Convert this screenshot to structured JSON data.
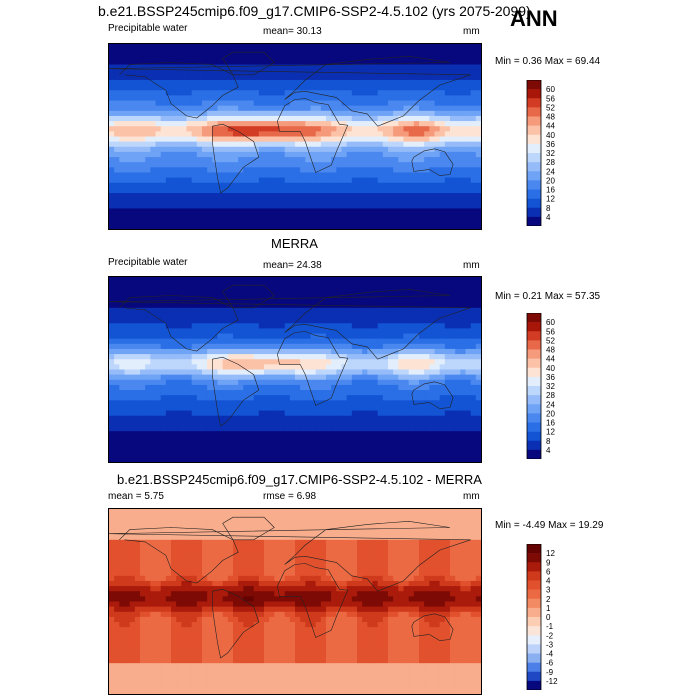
{
  "header": {
    "title": "b.e21.BSSP245cmip6.f09_g17.CMIP6-SSP2-4.5.102 (yrs 2075-2099)",
    "season": "ANN"
  },
  "panels": [
    {
      "title": "",
      "left_label": "Precipitable water",
      "center_label": "mean=  30.13",
      "units": "mm",
      "minmax": "Min =   0.36 Max =  69.44"
    },
    {
      "title": "MERRA",
      "left_label": "Precipitable water",
      "center_label": "mean=  24.38",
      "units": "mm",
      "minmax": "Min =   0.21 Max =  57.35"
    },
    {
      "title": "b.e21.BSSP245cmip6.f09_g17.CMIP6-SSP2-4.5.102 - MERRA",
      "left_label": "mean =   5.75",
      "center_label": "rmse =   6.98",
      "units": "mm",
      "minmax": "Min =  -4.49 Max =  19.29"
    }
  ],
  "chart_data": [
    {
      "type": "heatmap",
      "title": "",
      "variable": "Precipitable water",
      "units": "mm",
      "mean": 30.13,
      "min": 0.36,
      "max": 69.44,
      "colorbar_levels": [
        4,
        8,
        12,
        16,
        20,
        24,
        28,
        32,
        36,
        40,
        44,
        48,
        52,
        56,
        60
      ],
      "colorbar_labels": [
        "60",
        "56",
        "52",
        "48",
        "44",
        "40",
        "36",
        "32",
        "28",
        "24",
        "20",
        "16",
        "12",
        "8",
        "4"
      ],
      "colors": [
        "#08087e",
        "#0a2fb3",
        "#1254d4",
        "#2a6fe6",
        "#4a88f0",
        "#6ea3f6",
        "#95bcf8",
        "#bdd6fb",
        "#e3eefc",
        "#fde3d3",
        "#fbc2a8",
        "#f59a7a",
        "#e8694a",
        "#d23c24",
        "#a81509",
        "#7d0a05"
      ],
      "field": "tropical maximum along the equator, decreasing toward the poles"
    },
    {
      "type": "heatmap",
      "title": "MERRA",
      "variable": "Precipitable water",
      "units": "mm",
      "mean": 24.38,
      "min": 0.21,
      "max": 57.35,
      "colorbar_levels": [
        4,
        8,
        12,
        16,
        20,
        24,
        28,
        32,
        36,
        40,
        44,
        48,
        52,
        56,
        60
      ],
      "colorbar_labels": [
        "60",
        "56",
        "52",
        "48",
        "44",
        "40",
        "36",
        "32",
        "28",
        "24",
        "20",
        "16",
        "12",
        "8",
        "4"
      ],
      "colors": [
        "#08087e",
        "#0a2fb3",
        "#1254d4",
        "#2a6fe6",
        "#4a88f0",
        "#6ea3f6",
        "#95bcf8",
        "#bdd6fb",
        "#e3eefc",
        "#fde3d3",
        "#fbc2a8",
        "#f59a7a",
        "#e8694a",
        "#d23c24",
        "#a81509",
        "#7d0a05"
      ],
      "field": "tropical maximum along the equator, decreasing toward the poles"
    },
    {
      "type": "heatmap",
      "title": "b.e21.BSSP245cmip6.f09_g17.CMIP6-SSP2-4.5.102 - MERRA",
      "variable": "difference",
      "units": "mm",
      "mean": 5.75,
      "rmse": 6.98,
      "min": -4.49,
      "max": 19.29,
      "colorbar_levels": [
        -12,
        -9,
        -6,
        -4,
        -3,
        -2,
        -1,
        0,
        1,
        2,
        3,
        4,
        6,
        9,
        12
      ],
      "colorbar_labels": [
        "12",
        "9",
        "6",
        "4",
        "3",
        "2",
        "1",
        "0",
        "-1",
        "-2",
        "-3",
        "-4",
        "-6",
        "-9",
        "-12"
      ],
      "colors": [
        "#08087e",
        "#1f49c4",
        "#4d7fe8",
        "#8ab0f2",
        "#bcd2f8",
        "#e6effb",
        "#fbe4d8",
        "#fbcdb3",
        "#f8ad8c",
        "#f28a64",
        "#ec6a43",
        "#e2512d",
        "#d03a1c",
        "#ab1b0b",
        "#7d0a05",
        "#650303"
      ],
      "field": "positive almost everywhere, strongest along the equator"
    }
  ]
}
